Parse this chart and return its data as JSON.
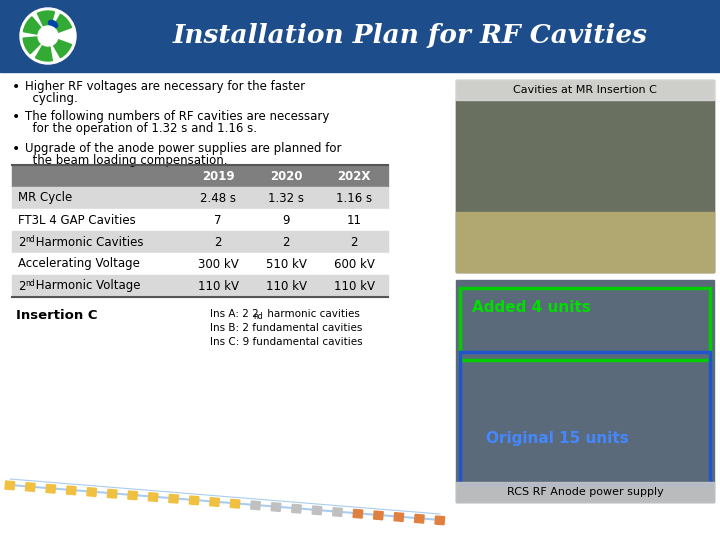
{
  "title": "Installation Plan for RF Cavities",
  "title_color": "#ffffff",
  "header_bg": "#1e4d8c",
  "slide_bg": "#ffffff",
  "bullet_points": [
    "Higher RF voltages are necessary for the faster\n  cycling.",
    "The following numbers of RF cavities are necessary\n  for the operation of 1.32 s and 1.16 s.",
    "Upgrade of the anode power supplies are planned for\n  the beam loading compensation."
  ],
  "table_headers": [
    "",
    "2019",
    "2020",
    "202X"
  ],
  "table_rows": [
    [
      "MR Cycle",
      "2.48 s",
      "1.32 s",
      "1.16 s"
    ],
    [
      "FT3L 4 GAP Cavities",
      "7",
      "9",
      "11"
    ],
    [
      "2nd Harmonic Cavities",
      "2",
      "2",
      "2"
    ],
    [
      "Accelerating Voltage",
      "300 kV",
      "510 kV",
      "600 kV"
    ],
    [
      "2nd Harmonic Voltage",
      "110 kV",
      "110 kV",
      "110 kV"
    ]
  ],
  "header_row_bg": "#7f7f7f",
  "alt_row_bg": "#d9d9d9",
  "white_row_bg": "#ffffff",
  "insertion_label": "Insertion C",
  "insertion_details": [
    [
      "Ins A: 2 2",
      "nd",
      " harmonic cavities"
    ],
    [
      "Ins B: 2 fundamental cavities",
      "",
      ""
    ],
    [
      "Ins C: 9 fundamental cavities",
      "",
      ""
    ]
  ],
  "photo1_label": "Cavities at MR Insertion C",
  "photo1_bg": "#7a7a60",
  "photo2_label": "RCS RF Anode power supply",
  "photo2_bg": "#5a6a7a",
  "added_label": "Added 4 units",
  "added_color": "#00dd00",
  "added_box_color": "#00cc00",
  "original_label": "Original 15 units",
  "original_color": "#4488ff",
  "original_box_color": "#2255cc",
  "logo_green": "#33aa33",
  "logo_blue": "#0044aa"
}
